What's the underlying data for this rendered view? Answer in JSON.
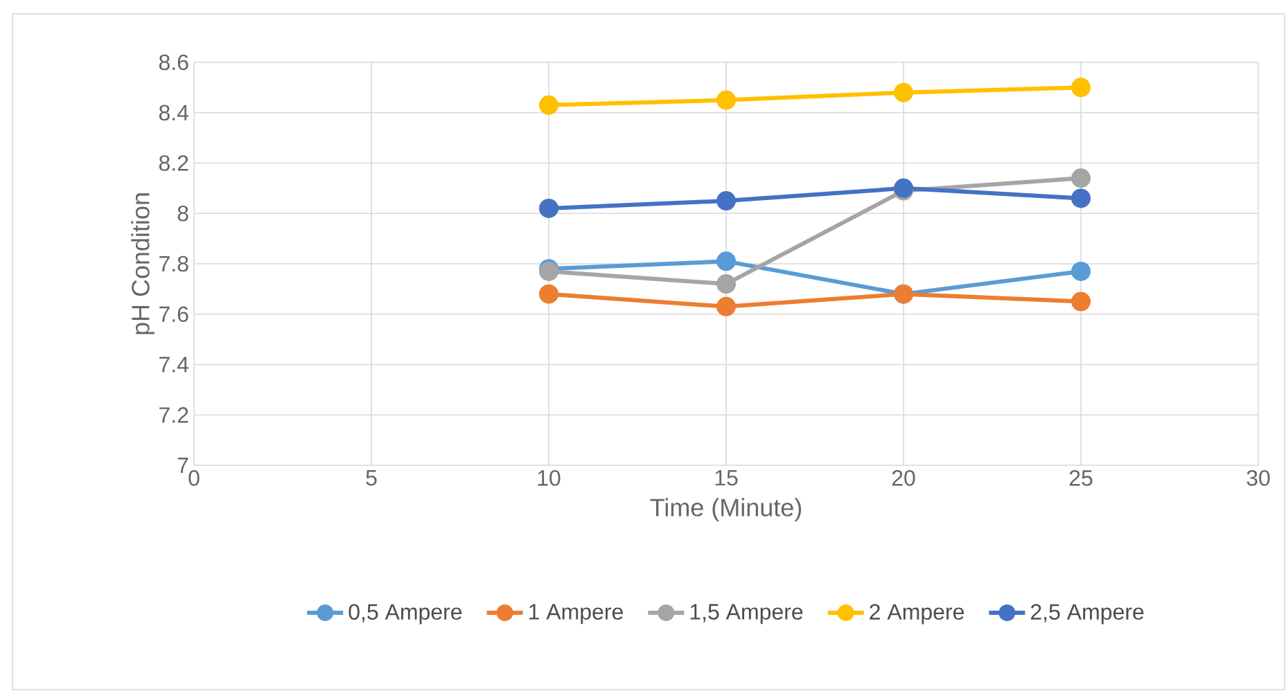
{
  "chart_data": {
    "type": "line",
    "xlabel": "Time (Minute)",
    "ylabel": "pH Condition",
    "xlim": [
      0,
      30
    ],
    "xticks": [
      0,
      5,
      10,
      15,
      20,
      25,
      30
    ],
    "ylim": [
      7,
      8.6
    ],
    "yticks": [
      7,
      7.2,
      7.4,
      7.6,
      7.8,
      8,
      8.2,
      8.4,
      8.6
    ],
    "grid": true,
    "legend": "bottom",
    "marker": "circle",
    "x": [
      10,
      15,
      20,
      25
    ],
    "series": [
      {
        "name": "0,5 Ampere",
        "color": "#5b9bd5",
        "values": [
          7.78,
          7.81,
          7.68,
          7.77
        ]
      },
      {
        "name": "1 Ampere",
        "color": "#ed7d31",
        "values": [
          7.68,
          7.63,
          7.68,
          7.65
        ]
      },
      {
        "name": "1,5 Ampere",
        "color": "#a5a5a5",
        "values": [
          7.77,
          7.72,
          8.09,
          8.14
        ]
      },
      {
        "name": "2 Ampere",
        "color": "#ffc000",
        "values": [
          8.43,
          8.45,
          8.48,
          8.5
        ]
      },
      {
        "name": "2,5 Ampere",
        "color": "#4472c4",
        "values": [
          8.02,
          8.05,
          8.1,
          8.06
        ]
      }
    ]
  }
}
